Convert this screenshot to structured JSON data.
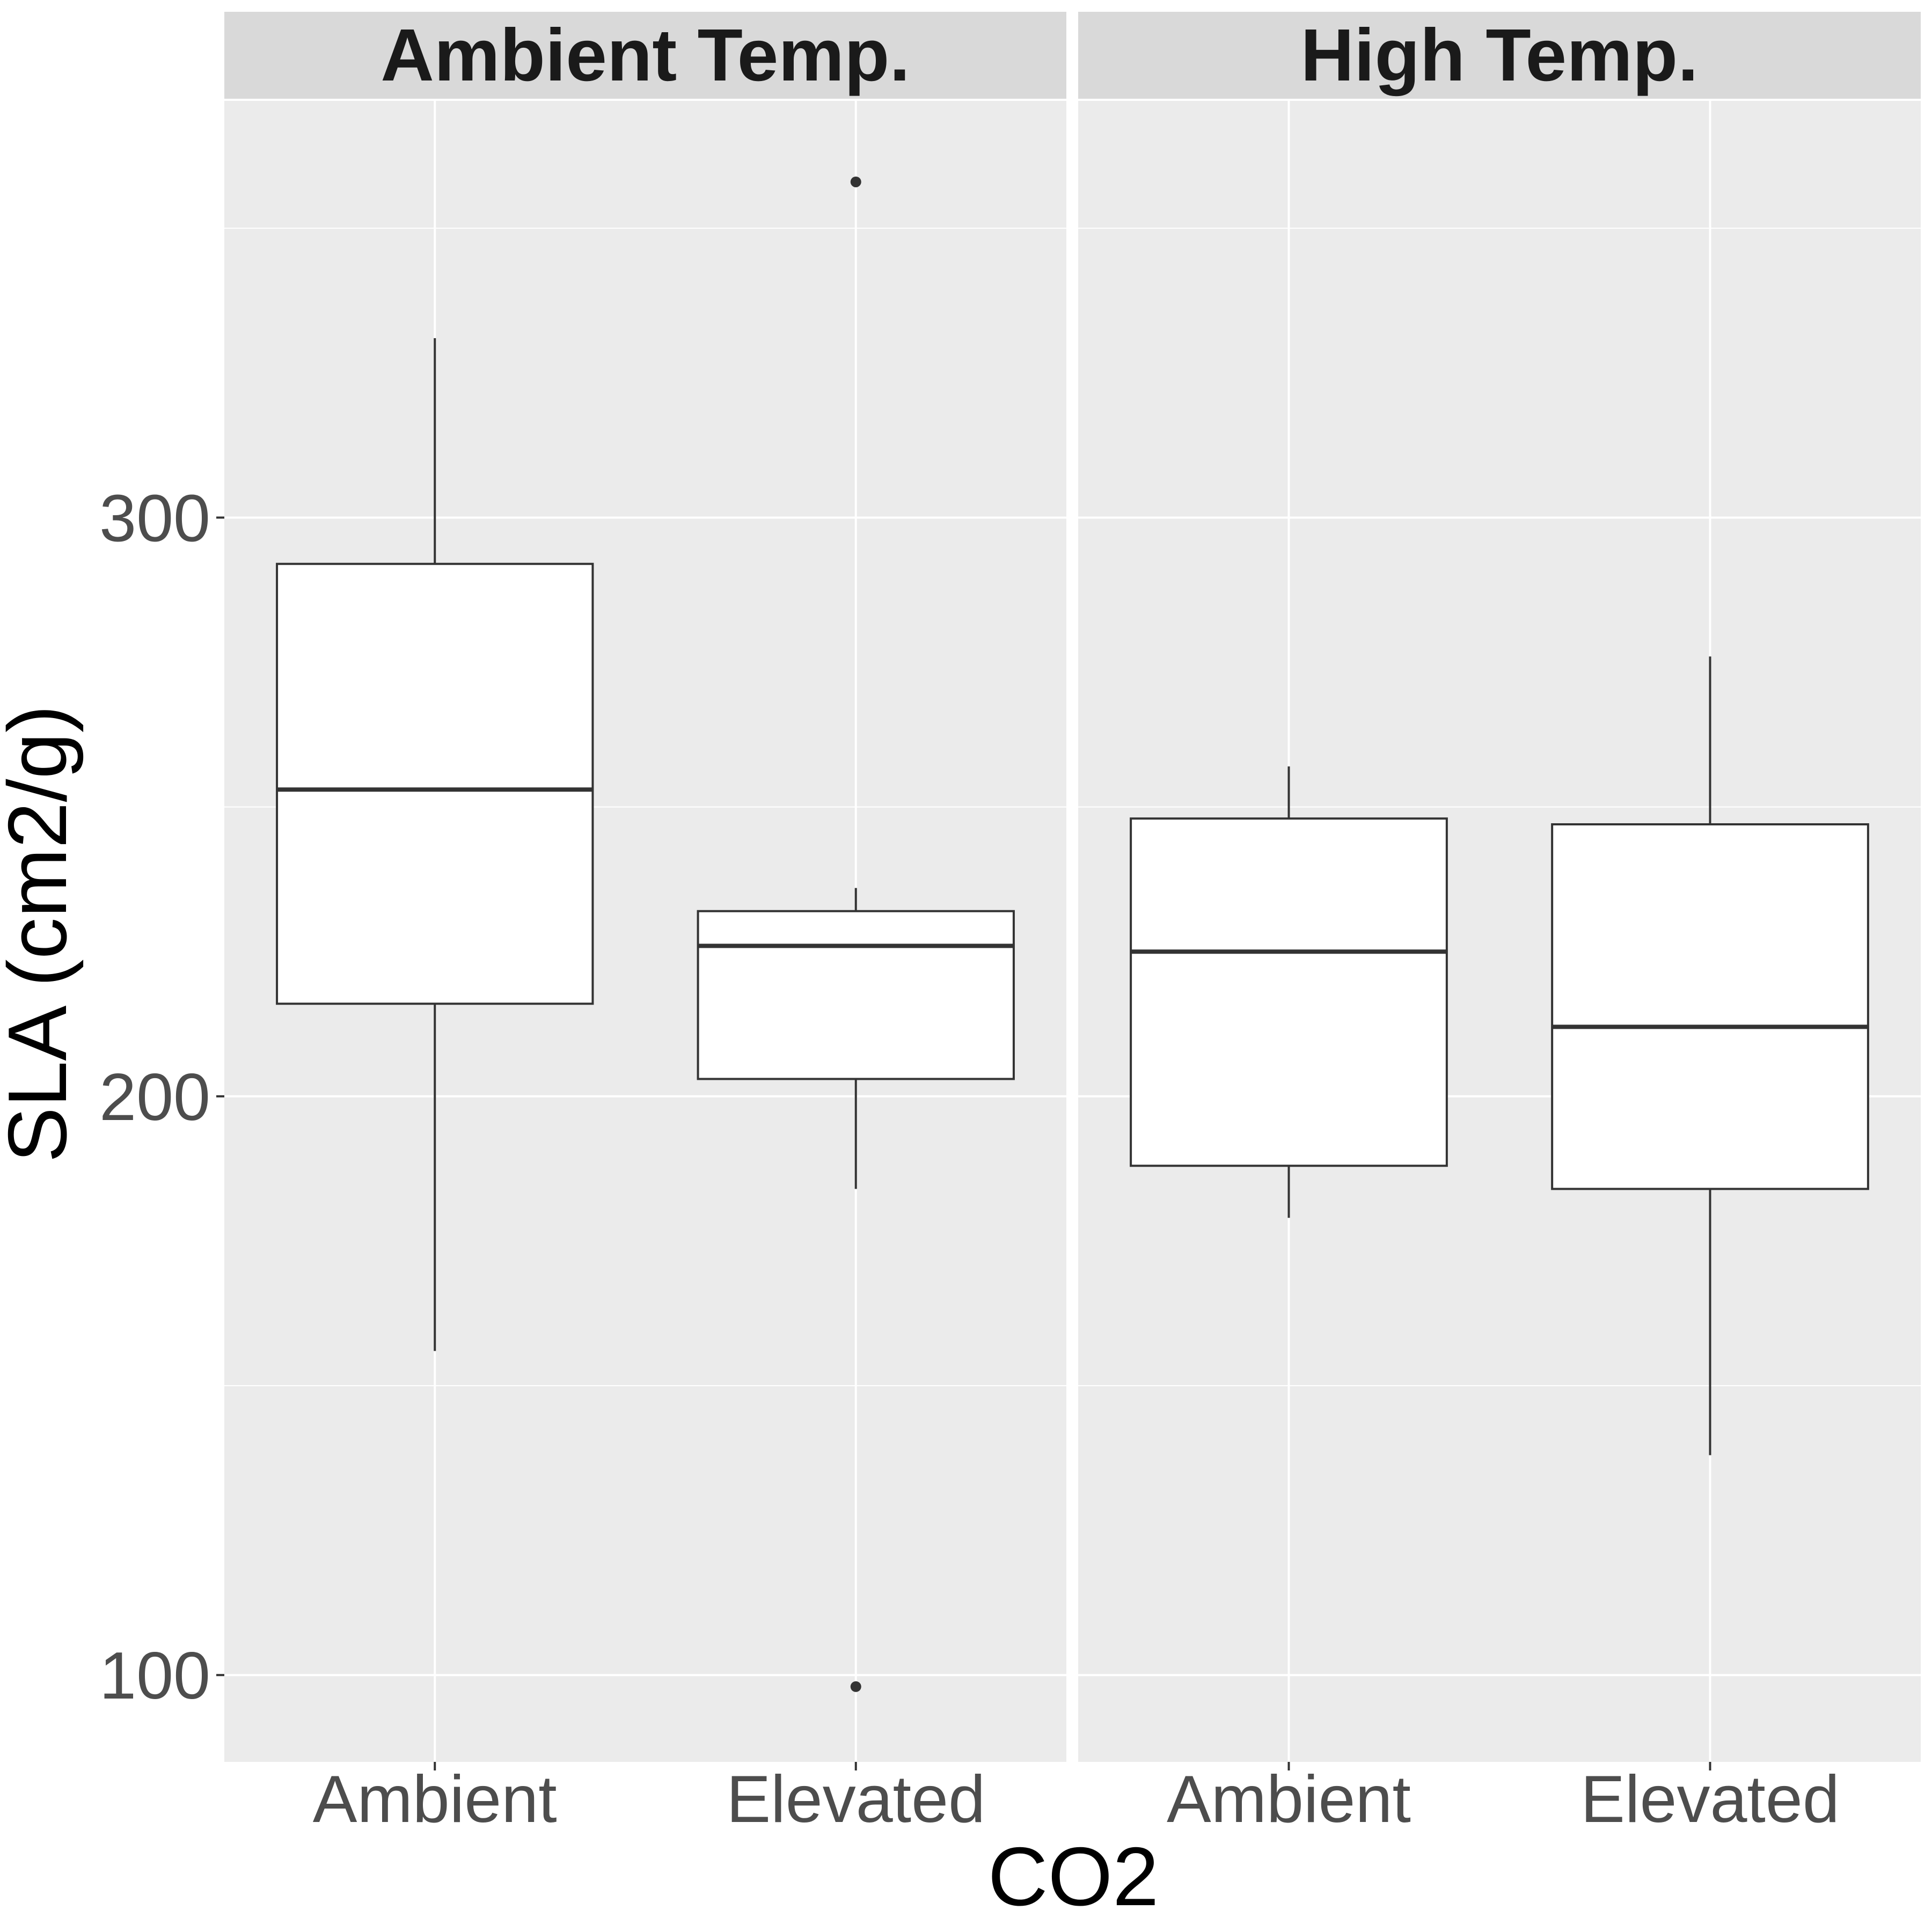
{
  "chart_data": {
    "type": "boxplot",
    "title": "",
    "xlabel": "CO2",
    "ylabel": "SLA (cm2/g)",
    "ylim": [
      85,
      372
    ],
    "yticks": [
      100,
      200,
      300
    ],
    "categories": [
      "Ambient",
      "Elevated"
    ],
    "grid": true,
    "panels": [
      {
        "label": "Ambient Temp.",
        "boxes": [
          {
            "category": "Ambient",
            "lower_whisker": 156,
            "q1": 216,
            "median": 253,
            "q3": 292,
            "upper_whisker": 331,
            "outliers": []
          },
          {
            "category": "Elevated",
            "lower_whisker": 184,
            "q1": 203,
            "median": 226,
            "q3": 232,
            "upper_whisker": 236,
            "outliers": [
              358,
              98
            ]
          }
        ]
      },
      {
        "label": "High Temp.",
        "boxes": [
          {
            "category": "Ambient",
            "lower_whisker": 179,
            "q1": 188,
            "median": 225,
            "q3": 248,
            "upper_whisker": 257,
            "outliers": []
          },
          {
            "category": "Elevated",
            "lower_whisker": 138,
            "q1": 184,
            "median": 212,
            "q3": 247,
            "upper_whisker": 276,
            "outliers": []
          }
        ]
      }
    ],
    "colors": {
      "panel_background": "#ebebeb",
      "strip_background": "#d9d9d9",
      "grid": "#ffffff",
      "box_fill": "#ffffff",
      "box_line": "#333333"
    }
  }
}
